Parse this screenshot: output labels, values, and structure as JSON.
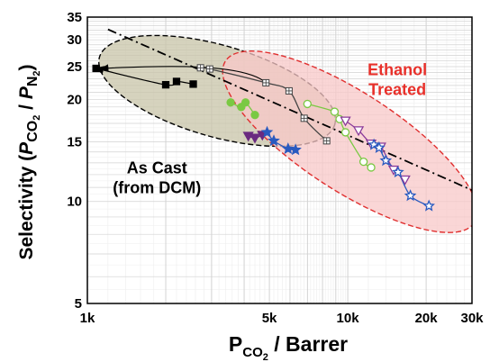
{
  "chart_data": {
    "type": "scatter",
    "title": "",
    "xscale": "log",
    "yscale": "log",
    "xlim": [
      1000,
      30000
    ],
    "ylim": [
      5,
      35
    ],
    "xticks": [
      1000,
      5000,
      10000,
      20000,
      30000
    ],
    "xtick_labels": [
      "1k",
      "5k",
      "10k",
      "20k",
      "30k"
    ],
    "yticks": [
      5,
      10,
      15,
      20,
      25,
      30,
      35
    ],
    "ytick_labels": [
      "5",
      "10",
      "15",
      "20",
      "25",
      "30",
      "35"
    ],
    "xlabel": {
      "main": "P",
      "sub": "CO",
      "subsub": "2",
      "rest": " / Barrer"
    },
    "ylabel": {
      "a": "Selectivity (",
      "b": "P",
      "c": "CO",
      "d": "2",
      "e": " / ",
      "f": "P",
      "g": "N",
      "h": "2",
      "i": ")"
    },
    "grid": true,
    "annotations": [
      {
        "lines": [
          "Ethanol",
          "Treated"
        ],
        "color": "#e8302a",
        "x": 15500,
        "y": 23.6
      },
      {
        "lines": [
          "As Cast",
          "(from DCM)"
        ],
        "color": "#000000",
        "x": 1850,
        "y": 12.1
      }
    ],
    "upper_bound": [
      [
        1200,
        32.2
      ],
      [
        30000,
        10.8
      ]
    ],
    "ellipses": [
      {
        "name": "as-cast",
        "center": [
          3150,
          21.2
        ],
        "rx_decades": 0.47,
        "ry_decades": 0.135,
        "angle_deg": 16,
        "fill": "#c8c4a8",
        "stroke": "#000000"
      },
      {
        "name": "ethanol-treated",
        "center": [
          10200,
          15.0
        ],
        "rx_decades": 0.57,
        "ry_decades": 0.145,
        "angle_deg": 33,
        "fill": "#f8c8c8",
        "stroke": "#e03030"
      }
    ],
    "series": [
      {
        "marker": "square",
        "color": "#000000",
        "filled": true,
        "x": [
          1080,
          2000,
          2200,
          2550
        ],
        "y": [
          24.7,
          22.1,
          22.6,
          22.2
        ]
      },
      {
        "marker": "square-plus",
        "color": "#444444",
        "filled": false,
        "x": [
          2720,
          2950,
          4850,
          5950,
          6800,
          8300
        ],
        "y": [
          24.8,
          24.6,
          22.4,
          21.2,
          17.6,
          15.1
        ]
      },
      {
        "marker": "circle",
        "color": "#7ac943",
        "filled": true,
        "x": [
          3550,
          4050,
          4400,
          3900
        ],
        "y": [
          19.6,
          19.6,
          18.0,
          19.0
        ]
      },
      {
        "marker": "circle",
        "color": "#7ac943",
        "filled": false,
        "x": [
          7000,
          8900,
          9300,
          9800,
          11500,
          12300
        ],
        "y": [
          19.4,
          18.4,
          17.5,
          16.0,
          13.1,
          12.6
        ]
      },
      {
        "marker": "triangle-down",
        "color": "#6a2a80",
        "filled": true,
        "x": [
          4150,
          4400,
          4700
        ],
        "y": [
          15.6,
          15.4,
          15.7
        ]
      },
      {
        "marker": "triangle-down",
        "color": "#8a3a9a",
        "filled": false,
        "x": [
          9800,
          11000,
          12300,
          13400,
          15000,
          16600
        ],
        "y": [
          17.3,
          16.2,
          14.8,
          14.5,
          12.4,
          11.6
        ]
      },
      {
        "marker": "star",
        "color": "#2a5abf",
        "filled": true,
        "x": [
          4900,
          5200,
          5900,
          6300
        ],
        "y": [
          16.0,
          15.1,
          14.3,
          14.2
        ]
      },
      {
        "marker": "star",
        "color": "#2a5abf",
        "filled": false,
        "x": [
          12600,
          13200,
          14000,
          15600,
          17400,
          20500
        ],
        "y": [
          14.7,
          14.4,
          13.2,
          12.2,
          10.4,
          9.7
        ]
      }
    ]
  }
}
